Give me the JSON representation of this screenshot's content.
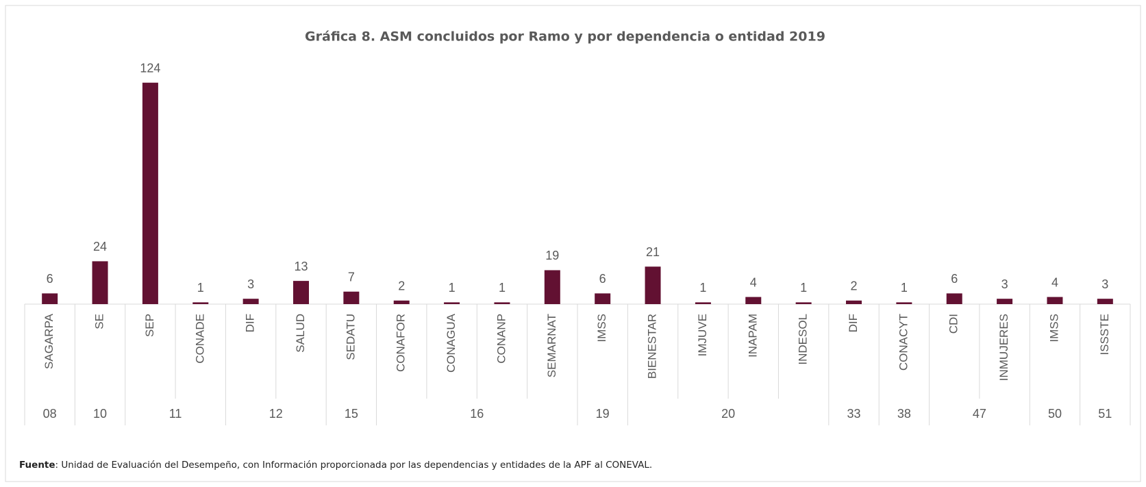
{
  "chart_data": {
    "type": "bar",
    "title": "Gráfica 8. ASM concluidos por Ramo y por dependencia o entidad 2019",
    "color": "#621132",
    "ylim": [
      0,
      140
    ],
    "groups": [
      {
        "label": "08",
        "categories": [
          "SAGARPA"
        ],
        "values": [
          6
        ]
      },
      {
        "label": "10",
        "categories": [
          "SE"
        ],
        "values": [
          24
        ]
      },
      {
        "label": "11",
        "categories": [
          "SEP",
          "CONADE"
        ],
        "values": [
          124,
          1
        ]
      },
      {
        "label": "12",
        "categories": [
          "DIF",
          "SALUD"
        ],
        "values": [
          3,
          13
        ]
      },
      {
        "label": "15",
        "categories": [
          "SEDATU"
        ],
        "values": [
          7
        ]
      },
      {
        "label": "16",
        "categories": [
          "CONAFOR",
          "CONAGUA",
          "CONANP",
          "SEMARNAT"
        ],
        "values": [
          2,
          1,
          1,
          19
        ]
      },
      {
        "label": "19",
        "categories": [
          "IMSS"
        ],
        "values": [
          6
        ]
      },
      {
        "label": "20",
        "categories": [
          "BIENESTAR",
          "IMJUVE",
          "INAPAM",
          "INDESOL"
        ],
        "values": [
          21,
          1,
          4,
          1
        ]
      },
      {
        "label": "33",
        "categories": [
          "DIF"
        ],
        "values": [
          2
        ]
      },
      {
        "label": "38",
        "categories": [
          "CONACYT"
        ],
        "values": [
          1
        ]
      },
      {
        "label": "47",
        "categories": [
          "CDI",
          "INMUJERES"
        ],
        "values": [
          6,
          3
        ]
      },
      {
        "label": "50",
        "categories": [
          "IMSS"
        ],
        "values": [
          4
        ]
      },
      {
        "label": "51",
        "categories": [
          "ISSSTE"
        ],
        "values": [
          3
        ]
      }
    ],
    "source_label": "Fuente",
    "source": ": Unidad de Evaluación del Desempeño, con Información proporcionada por las dependencias y entidades de la APF al CONEVAL."
  }
}
